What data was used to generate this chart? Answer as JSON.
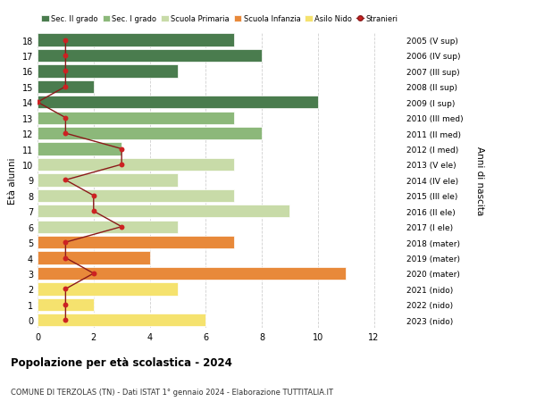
{
  "ages": [
    0,
    1,
    2,
    3,
    4,
    5,
    6,
    7,
    8,
    9,
    10,
    11,
    12,
    13,
    14,
    15,
    16,
    17,
    18
  ],
  "right_labels": [
    "2023 (nido)",
    "2022 (nido)",
    "2021 (nido)",
    "2020 (mater)",
    "2019 (mater)",
    "2018 (mater)",
    "2017 (I ele)",
    "2016 (II ele)",
    "2015 (III ele)",
    "2014 (IV ele)",
    "2013 (V ele)",
    "2012 (I med)",
    "2011 (II med)",
    "2010 (III med)",
    "2009 (I sup)",
    "2008 (II sup)",
    "2007 (III sup)",
    "2006 (IV sup)",
    "2005 (V sup)"
  ],
  "bar_values": [
    6,
    2,
    5,
    11,
    4,
    7,
    5,
    9,
    7,
    5,
    7,
    3,
    8,
    7,
    10,
    2,
    5,
    8,
    7
  ],
  "bar_colors": [
    "#f5e26e",
    "#f5e26e",
    "#f5e26e",
    "#e8893a",
    "#e8893a",
    "#e8893a",
    "#c8dba8",
    "#c8dba8",
    "#c8dba8",
    "#c8dba8",
    "#c8dba8",
    "#8cb87a",
    "#8cb87a",
    "#8cb87a",
    "#4a7c4e",
    "#4a7c4e",
    "#4a7c4e",
    "#4a7c4e",
    "#4a7c4e"
  ],
  "stranieri_values": [
    1,
    1,
    1,
    2,
    1,
    1,
    3,
    2,
    2,
    1,
    3,
    3,
    1,
    1,
    0,
    1,
    1,
    1,
    1
  ],
  "legend_labels": [
    "Sec. II grado",
    "Sec. I grado",
    "Scuola Primaria",
    "Scuola Infanzia",
    "Asilo Nido",
    "Stranieri"
  ],
  "legend_colors": [
    "#4a7c4e",
    "#8cb87a",
    "#c8dba8",
    "#e8893a",
    "#f5e26e",
    "#cc2222"
  ],
  "ylabel_left": "Età alunni",
  "ylabel_right": "Anni di nascita",
  "title": "Popolazione per età scolastica - 2024",
  "subtitle": "COMUNE DI TERZOLAS (TN) - Dati ISTAT 1° gennaio 2024 - Elaborazione TUTTITALIA.IT",
  "xlim": [
    0,
    13
  ],
  "xticks": [
    0,
    2,
    4,
    6,
    8,
    10,
    12
  ],
  "background_color": "#ffffff",
  "grid_color": "#d0d0d0"
}
